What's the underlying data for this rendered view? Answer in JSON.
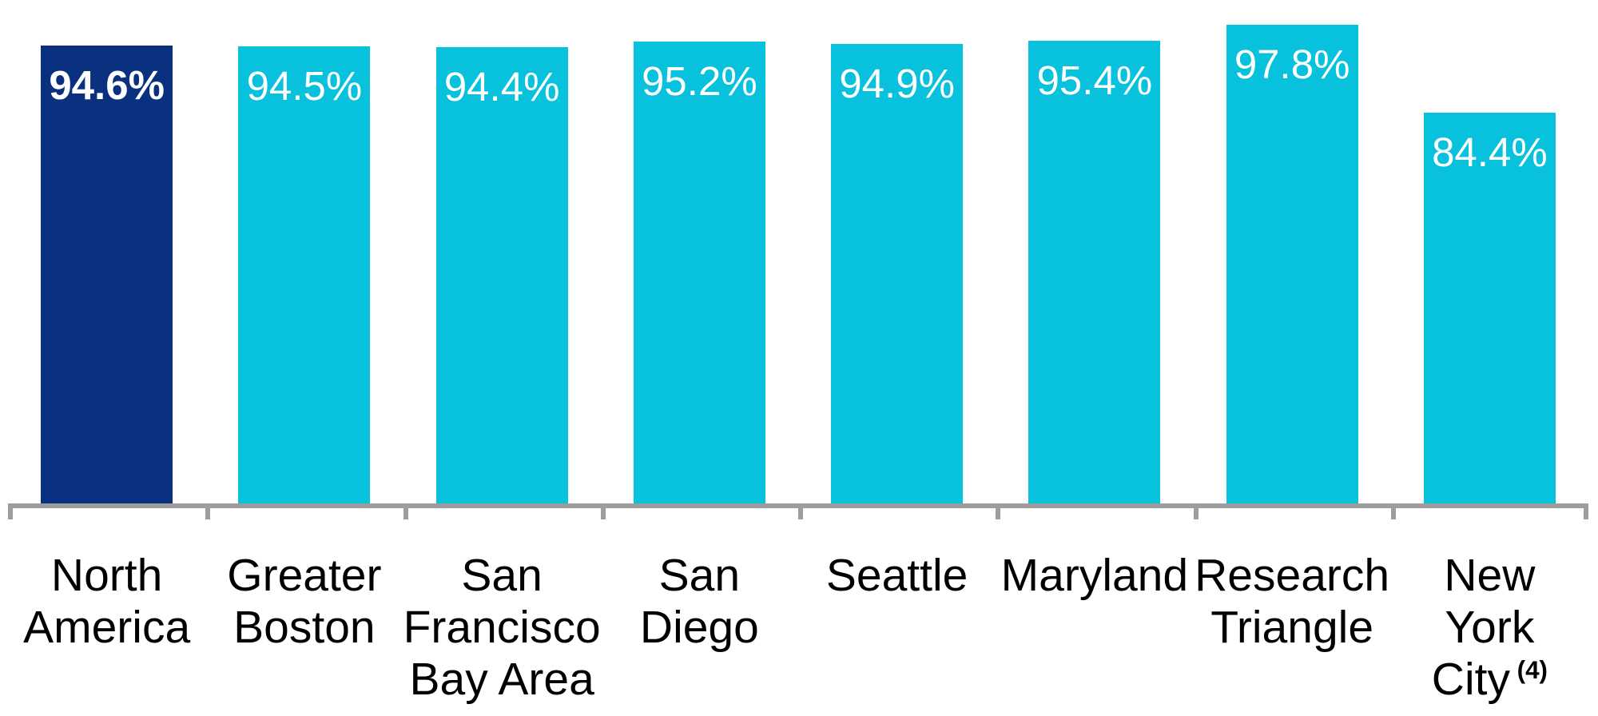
{
  "chart_data": {
    "type": "bar",
    "title": "",
    "xlabel": "",
    "ylabel": "",
    "categories": [
      {
        "name": "North America",
        "lines": [
          "North",
          "America"
        ],
        "superscript": ""
      },
      {
        "name": "Greater Boston",
        "lines": [
          "Greater",
          "Boston"
        ],
        "superscript": ""
      },
      {
        "name": "San Francisco Bay Area",
        "lines": [
          "San",
          "Francisco",
          "Bay Area"
        ],
        "superscript": ""
      },
      {
        "name": "San Diego",
        "lines": [
          "San",
          "Diego"
        ],
        "superscript": ""
      },
      {
        "name": "Seattle",
        "lines": [
          "Seattle"
        ],
        "superscript": ""
      },
      {
        "name": "Maryland",
        "lines": [
          "Maryland"
        ],
        "superscript": ""
      },
      {
        "name": "Research Triangle",
        "lines": [
          "Research",
          "Triangle"
        ],
        "superscript": ""
      },
      {
        "name": "New York City",
        "lines": [
          "New",
          "York",
          "City"
        ],
        "superscript": "(4)"
      }
    ],
    "values": [
      94.6,
      94.5,
      94.4,
      95.2,
      94.9,
      95.4,
      97.8,
      84.4
    ],
    "value_labels": [
      "94.6%",
      "94.5%",
      "94.4%",
      "95.2%",
      "94.9%",
      "95.4%",
      "97.8%",
      "84.4%"
    ],
    "highlight_index": 0,
    "ylim": [
      25,
      100
    ],
    "grid": false,
    "legend": "none",
    "colors": {
      "highlight_bar": "#0A3180",
      "default_bar": "#07C1DD",
      "axis": "#9D9D9D",
      "value_text": "#FFFFFF",
      "category_text": "#000000",
      "background": "#FFFFFF"
    }
  },
  "layout_note": "occupancy percentage by region bar chart"
}
